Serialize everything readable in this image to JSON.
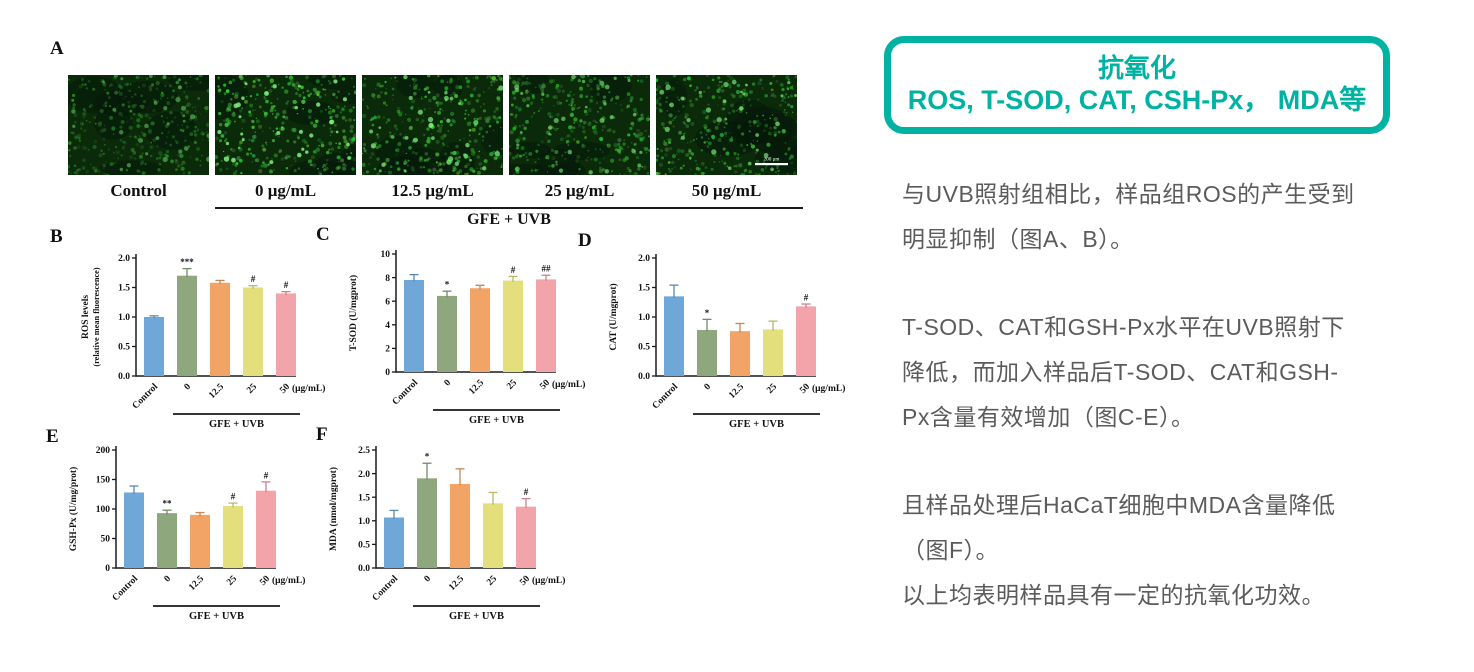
{
  "panel_a": {
    "letter": "A",
    "images": [
      {
        "label": "Control",
        "intensity": 0.55
      },
      {
        "label": "0 μg/mL",
        "intensity": 1.0
      },
      {
        "label": "12.5 μg/mL",
        "intensity": 0.85
      },
      {
        "label": "25 μg/mL",
        "intensity": 0.72
      },
      {
        "label": "50 μg/mL",
        "intensity": 0.78
      }
    ],
    "scale_bar_label": "200 μm",
    "group_label": "GFE + UVB"
  },
  "chart_data": [
    {
      "panel": "B",
      "type": "bar",
      "categories": [
        "Control",
        "0",
        "12.5",
        "25",
        "50"
      ],
      "values": [
        1.0,
        1.7,
        1.58,
        1.5,
        1.4
      ],
      "errors": [
        0.02,
        0.12,
        0.04,
        0.03,
        0.03
      ],
      "significance": [
        "",
        "***",
        "",
        "#",
        "#"
      ],
      "ylabel": "ROS levels",
      "ylabel2": "(relative mean fluorescence)",
      "ylim": [
        0,
        2
      ],
      "yticks": [
        0,
        0.5,
        1,
        1.5,
        2
      ],
      "ytick_decimals": 1,
      "x_unit": "(μg/mL)",
      "group_label": "GFE + UVB"
    },
    {
      "panel": "C",
      "type": "bar",
      "categories": [
        "Control",
        "0",
        "12.5",
        "25",
        "50"
      ],
      "values": [
        7.8,
        6.45,
        7.1,
        7.75,
        7.85
      ],
      "errors": [
        0.45,
        0.4,
        0.25,
        0.35,
        0.35
      ],
      "significance": [
        "",
        "*",
        "",
        "#",
        "##"
      ],
      "ylabel": "T-SOD (U/mgprot)",
      "ylabel2": "",
      "ylim": [
        0,
        10
      ],
      "yticks": [
        0,
        2,
        4,
        6,
        8,
        10
      ],
      "ytick_decimals": 0,
      "x_unit": "(μg/mL)",
      "group_label": "GFE + UVB"
    },
    {
      "panel": "D",
      "type": "bar",
      "categories": [
        "Control",
        "0",
        "12.5",
        "25",
        "50"
      ],
      "values": [
        1.35,
        0.78,
        0.76,
        0.79,
        1.18
      ],
      "errors": [
        0.19,
        0.18,
        0.13,
        0.14,
        0.04
      ],
      "significance": [
        "",
        "*",
        "",
        "",
        "#"
      ],
      "ylabel": "CAT (U/mgprot)",
      "ylabel2": "",
      "ylim": [
        0,
        2
      ],
      "yticks": [
        0,
        0.5,
        1,
        1.5,
        2
      ],
      "ytick_decimals": 1,
      "x_unit": "(μg/mL)",
      "group_label": "GFE + UVB"
    },
    {
      "panel": "E",
      "type": "bar",
      "categories": [
        "Control",
        "0",
        "12.5",
        "25",
        "50"
      ],
      "values": [
        128,
        93,
        90,
        105,
        131
      ],
      "errors": [
        11,
        5,
        4,
        5,
        15
      ],
      "significance": [
        "",
        "**",
        "",
        "#",
        "#"
      ],
      "ylabel": "GSH-Px (U/mg/prot)",
      "ylabel2": "",
      "ylim": [
        0,
        200
      ],
      "yticks": [
        0,
        50,
        100,
        150,
        200
      ],
      "ytick_decimals": 0,
      "x_unit": "(μg/mL)",
      "group_label": "GFE + UVB"
    },
    {
      "panel": "F",
      "type": "bar",
      "categories": [
        "Control",
        "0",
        "12.5",
        "25",
        "50"
      ],
      "values": [
        1.07,
        1.9,
        1.78,
        1.37,
        1.3
      ],
      "errors": [
        0.15,
        0.32,
        0.32,
        0.23,
        0.17
      ],
      "significance": [
        "",
        "*",
        "",
        "",
        "#"
      ],
      "ylabel": "MDA (nmol/mgprot)",
      "ylabel2": "",
      "ylim": [
        0,
        2.5
      ],
      "yticks": [
        0,
        0.5,
        1,
        1.5,
        2,
        2.5
      ],
      "ytick_decimals": 1,
      "x_unit": "(μg/mL)",
      "group_label": "GFE + UVB"
    }
  ],
  "colors": {
    "bars": [
      "#6FA7D9",
      "#8FA77C",
      "#F2A466",
      "#E2DF7C",
      "#F3A3AA"
    ],
    "accent": "#00B2A2",
    "text_gray": "#5B5B5B",
    "axis": "#1a1a1a"
  },
  "annotation": {
    "box_line1": "抗氧化",
    "box_line2": "ROS, T-SOD, CAT, CSH-Px， MDA等",
    "paragraphs": [
      "与UVB照射组相比，样品组ROS的产生受到\n明显抑制（图A、B）。",
      "T-SOD、CAT和GSH-Px水平在UVB照射下\n降低，而加入样品后T-SOD、CAT和GSH-\nPx含量有效增加（图C-E）。",
      "且样品处理后HaCaT细胞中MDA含量降低\n（图F）。",
      "以上均表明样品具有一定的抗氧化功效。"
    ]
  }
}
